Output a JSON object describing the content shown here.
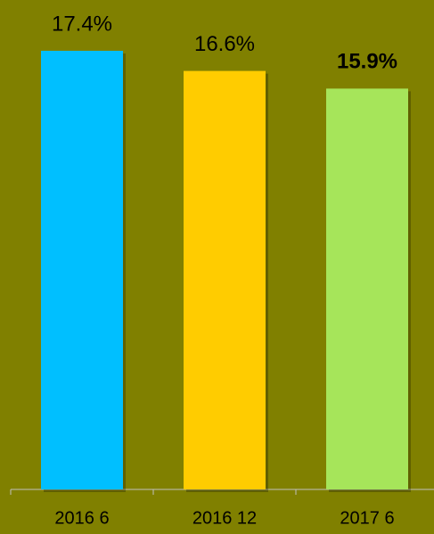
{
  "chart_data": {
    "type": "bar",
    "categories": [
      "2016 6",
      "2016 12",
      "2017 6"
    ],
    "values": [
      17.4,
      16.6,
      15.9
    ],
    "value_labels": [
      "17.4%",
      "16.6%",
      "15.9%"
    ],
    "value_label_bold": [
      false,
      false,
      true
    ],
    "colors": [
      "#00bfff",
      "#ffcc00",
      "#a6e55a"
    ],
    "ylim": [
      0,
      18
    ]
  }
}
